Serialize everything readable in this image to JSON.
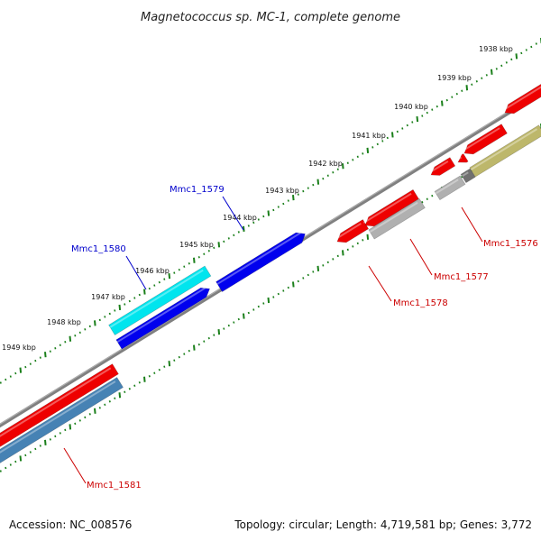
{
  "title": "Magnetococcus sp. MC-1, complete genome",
  "footer": {
    "accession": "Accession: NC_008576",
    "summary": "Topology: circular; Length: 4,719,581 bp; Genes: 3,772"
  },
  "scale_ticks": [
    {
      "kbp": 1938,
      "label": "1938 kbp"
    },
    {
      "kbp": 1939,
      "label": "1939 kbp"
    },
    {
      "kbp": 1940,
      "label": "1940 kbp"
    },
    {
      "kbp": 1941,
      "label": "1941 kbp"
    },
    {
      "kbp": 1942,
      "label": "1942 kbp"
    },
    {
      "kbp": 1943,
      "label": "1943 kbp"
    },
    {
      "kbp": 1944,
      "label": "1944 kbp"
    },
    {
      "kbp": 1945,
      "label": "1945 kbp"
    },
    {
      "kbp": 1946,
      "label": "1946 kbp"
    },
    {
      "kbp": 1947,
      "label": "1947 kbp"
    },
    {
      "kbp": 1948,
      "label": "1948 kbp"
    },
    {
      "kbp": 1949,
      "label": "1949 kbp"
    }
  ],
  "gene_labels": [
    {
      "text": "Mmc1_1579",
      "strand": "forward",
      "color": "#0000cc"
    },
    {
      "text": "Mmc1_1580",
      "strand": "forward",
      "color": "#0000cc"
    },
    {
      "text": "Mmc1_1576",
      "strand": "reverse",
      "color": "#cc0000"
    },
    {
      "text": "Mmc1_1577",
      "strand": "reverse",
      "color": "#cc0000"
    },
    {
      "text": "Mmc1_1578",
      "strand": "reverse",
      "color": "#cc0000"
    },
    {
      "text": "Mmc1_1581",
      "strand": "reverse",
      "color": "#cc0000"
    }
  ],
  "colors": {
    "backbone": "#808080",
    "tick_marks": "#1a7f1a",
    "forward_cds": "#0000ee",
    "forward_gene": "#00e5ee",
    "reverse_cds": "#ee0000",
    "reverse_gene_light": "#b0b0b0",
    "reverse_gene_blue": "#4682b4",
    "reverse_gene_olive": "#bdb76b",
    "reverse_gene_dark": "#707070"
  }
}
